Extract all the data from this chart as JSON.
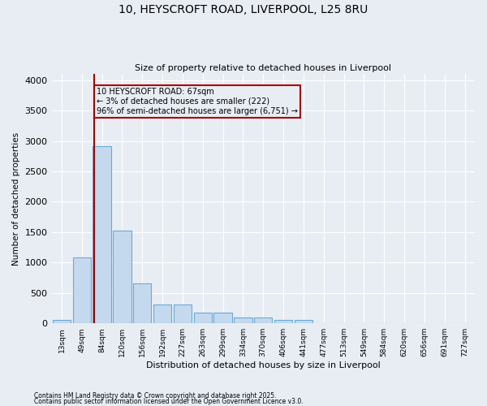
{
  "title_line1": "10, HEYSCROFT ROAD, LIVERPOOL, L25 8RU",
  "title_line2": "Size of property relative to detached houses in Liverpool",
  "xlabel": "Distribution of detached houses by size in Liverpool",
  "ylabel": "Number of detached properties",
  "bar_color": "#c5d9ee",
  "bar_edge_color": "#6aaad4",
  "background_color": "#e8edf4",
  "grid_color": "#ffffff",
  "categories": [
    "13sqm",
    "49sqm",
    "84sqm",
    "120sqm",
    "156sqm",
    "192sqm",
    "227sqm",
    "263sqm",
    "299sqm",
    "334sqm",
    "370sqm",
    "406sqm",
    "441sqm",
    "477sqm",
    "513sqm",
    "549sqm",
    "584sqm",
    "620sqm",
    "656sqm",
    "691sqm",
    "727sqm"
  ],
  "values": [
    55,
    1090,
    2920,
    1530,
    660,
    310,
    315,
    175,
    170,
    95,
    100,
    55,
    50,
    0,
    0,
    0,
    0,
    0,
    0,
    0,
    0
  ],
  "property_label": "10 HEYSCROFT ROAD: 67sqm",
  "annotation_line2": "← 3% of detached houses are smaller (222)",
  "annotation_line3": "96% of semi-detached houses are larger (6,751) →",
  "vline_color": "#aa0000",
  "ylim": [
    0,
    4100
  ],
  "vline_x": 1.62,
  "footnote1": "Contains HM Land Registry data © Crown copyright and database right 2025.",
  "footnote2": "Contains public sector information licensed under the Open Government Licence v3.0."
}
